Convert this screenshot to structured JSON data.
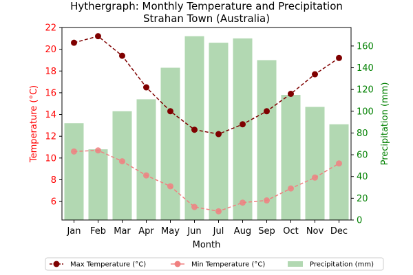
{
  "chart_data": {
    "type": "bar",
    "title": "Hythergraph: Monthly Temperature and Precipitation",
    "subtitle": "Strahan Town (Australia)",
    "xlabel": "Month",
    "ylabel_left": "Temperature (°C)",
    "ylabel_right": "Precipitation (mm)",
    "categories": [
      "Jan",
      "Feb",
      "Mar",
      "Apr",
      "May",
      "Jun",
      "Jul",
      "Aug",
      "Sep",
      "Oct",
      "Nov",
      "Dec"
    ],
    "ylim_left": [
      4.3,
      22
    ],
    "yticks_left": [
      6,
      8,
      10,
      12,
      14,
      16,
      18,
      20,
      22
    ],
    "ylim_right": [
      0,
      177
    ],
    "yticks_right": [
      0,
      20,
      40,
      60,
      80,
      100,
      120,
      140,
      160
    ],
    "series": [
      {
        "name": "Max Temperature (°C)",
        "kind": "line",
        "axis": "left",
        "color": "#7f0000",
        "values": [
          20.6,
          21.2,
          19.4,
          16.5,
          14.3,
          12.6,
          12.2,
          13.1,
          14.3,
          15.9,
          17.7,
          19.2
        ]
      },
      {
        "name": "Min Temperature (°C)",
        "kind": "line",
        "axis": "left",
        "color": "#f08080",
        "values": [
          10.6,
          10.7,
          9.7,
          8.4,
          7.4,
          5.5,
          5.1,
          5.9,
          6.1,
          7.2,
          8.2,
          9.5
        ]
      },
      {
        "name": "Precipitation (mm)",
        "kind": "bar",
        "axis": "right",
        "color": "#b2d8b2",
        "values": [
          89,
          65,
          100,
          111,
          140,
          169,
          163,
          167,
          147,
          115,
          104,
          88
        ]
      }
    ],
    "legend_position": "bottom",
    "grid": false,
    "colors": {
      "left_axis": "#ff0000",
      "right_axis": "#008000"
    }
  }
}
